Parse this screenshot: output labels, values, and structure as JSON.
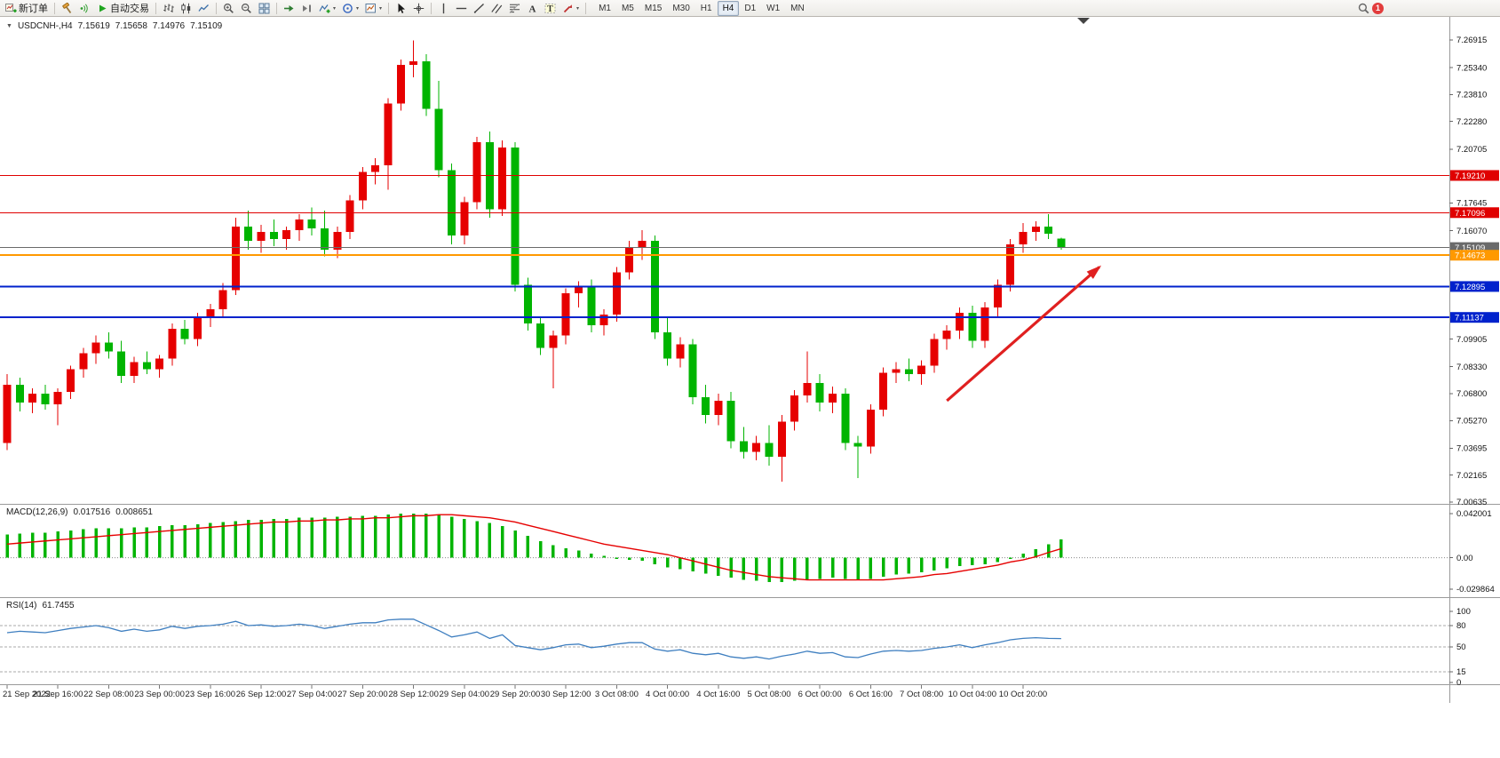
{
  "toolbar": {
    "groups": [
      [
        {
          "name": "new-order",
          "label": "新订单"
        }
      ],
      [
        {
          "name": "hammer"
        },
        {
          "name": "signal"
        },
        {
          "name": "autotrading",
          "label": "自动交易"
        }
      ],
      [
        {
          "name": "bar-chart"
        },
        {
          "name": "candlestick"
        },
        {
          "name": "line-chart"
        }
      ],
      [
        {
          "name": "zoom-in"
        },
        {
          "name": "zoom-out"
        },
        {
          "name": "tile-windows"
        }
      ],
      [
        {
          "name": "auto-scroll"
        },
        {
          "name": "chart-shift"
        },
        {
          "name": "indicators",
          "dropdown": true
        },
        {
          "name": "cycles",
          "dropdown": true
        },
        {
          "name": "templates",
          "dropdown": true
        }
      ],
      [
        {
          "name": "cursor"
        },
        {
          "name": "crosshair"
        }
      ],
      [
        {
          "name": "vertical-line"
        },
        {
          "name": "horizontal-line"
        },
        {
          "name": "trendline"
        },
        {
          "name": "channel"
        },
        {
          "name": "fibonacci"
        },
        {
          "name": "text"
        },
        {
          "name": "text-label"
        },
        {
          "name": "arrows",
          "dropdown": true
        }
      ]
    ],
    "timeframes": [
      "M1",
      "M5",
      "M15",
      "M30",
      "H1",
      "H4",
      "D1",
      "W1",
      "MN"
    ],
    "selected_timeframe": "H4",
    "notification_count": "1"
  },
  "quote": {
    "symbol_period": "USDCNH-,H4",
    "open": "7.15619",
    "high": "7.15658",
    "low": "7.14976",
    "close": "7.15109"
  },
  "chart_data": {
    "type": "candlestick",
    "symbol": "USDCNH-",
    "period": "H4",
    "colors": {
      "up": "#e60000",
      "down": "#00b400",
      "macd_hist": "#00b400",
      "macd_signal": "#e60000",
      "rsi": "#3f7fc0",
      "arrow": "#e02020"
    },
    "candles": [
      [
        7.04,
        7.079,
        7.036,
        7.073
      ],
      [
        7.073,
        7.077,
        7.058,
        7.063
      ],
      [
        7.063,
        7.071,
        7.057,
        7.068
      ],
      [
        7.068,
        7.073,
        7.059,
        7.062
      ],
      [
        7.062,
        7.071,
        7.05,
        7.069
      ],
      [
        7.069,
        7.084,
        7.065,
        7.082
      ],
      [
        7.082,
        7.094,
        7.077,
        7.091
      ],
      [
        7.091,
        7.101,
        7.085,
        7.097
      ],
      [
        7.097,
        7.103,
        7.088,
        7.092
      ],
      [
        7.092,
        7.098,
        7.074,
        7.078
      ],
      [
        7.078,
        7.089,
        7.074,
        7.086
      ],
      [
        7.086,
        7.092,
        7.079,
        7.082
      ],
      [
        7.082,
        7.09,
        7.077,
        7.088
      ],
      [
        7.088,
        7.108,
        7.084,
        7.105
      ],
      [
        7.105,
        7.11,
        7.096,
        7.099
      ],
      [
        7.099,
        7.114,
        7.095,
        7.112
      ],
      [
        7.112,
        7.119,
        7.106,
        7.116
      ],
      [
        7.116,
        7.131,
        7.112,
        7.127
      ],
      [
        7.127,
        7.168,
        7.124,
        7.163
      ],
      [
        7.163,
        7.172,
        7.15,
        7.155
      ],
      [
        7.155,
        7.164,
        7.148,
        7.16
      ],
      [
        7.16,
        7.167,
        7.152,
        7.156
      ],
      [
        7.156,
        7.163,
        7.15,
        7.161
      ],
      [
        7.161,
        7.17,
        7.155,
        7.167
      ],
      [
        7.167,
        7.174,
        7.158,
        7.162
      ],
      [
        7.162,
        7.172,
        7.146,
        7.15
      ],
      [
        7.15,
        7.163,
        7.145,
        7.16
      ],
      [
        7.16,
        7.181,
        7.156,
        7.178
      ],
      [
        7.178,
        7.197,
        7.173,
        7.194
      ],
      [
        7.194,
        7.202,
        7.187,
        7.198
      ],
      [
        7.198,
        7.236,
        7.184,
        7.233
      ],
      [
        7.233,
        7.258,
        7.229,
        7.255
      ],
      [
        7.255,
        7.269,
        7.248,
        7.257
      ],
      [
        7.257,
        7.261,
        7.226,
        7.23
      ],
      [
        7.23,
        7.246,
        7.191,
        7.195
      ],
      [
        7.195,
        7.199,
        7.153,
        7.158
      ],
      [
        7.158,
        7.18,
        7.153,
        7.177
      ],
      [
        7.177,
        7.214,
        7.173,
        7.211
      ],
      [
        7.211,
        7.217,
        7.168,
        7.173
      ],
      [
        7.173,
        7.212,
        7.169,
        7.208
      ],
      [
        7.208,
        7.211,
        7.126,
        7.13
      ],
      [
        7.13,
        7.134,
        7.104,
        7.108
      ],
      [
        7.108,
        7.112,
        7.09,
        7.094
      ],
      [
        7.094,
        7.104,
        7.071,
        7.101
      ],
      [
        7.101,
        7.128,
        7.096,
        7.125
      ],
      [
        7.125,
        7.132,
        7.117,
        7.129
      ],
      [
        7.129,
        7.133,
        7.103,
        7.107
      ],
      [
        7.107,
        7.116,
        7.101,
        7.113
      ],
      [
        7.113,
        7.14,
        7.109,
        7.137
      ],
      [
        7.137,
        7.155,
        7.133,
        7.151
      ],
      [
        7.151,
        7.161,
        7.144,
        7.155
      ],
      [
        7.155,
        7.158,
        7.099,
        7.103
      ],
      [
        7.103,
        7.111,
        7.084,
        7.088
      ],
      [
        7.088,
        7.1,
        7.083,
        7.096
      ],
      [
        7.096,
        7.099,
        7.062,
        7.066
      ],
      [
        7.066,
        7.073,
        7.051,
        7.056
      ],
      [
        7.056,
        7.068,
        7.05,
        7.064
      ],
      [
        7.064,
        7.069,
        7.037,
        7.041
      ],
      [
        7.041,
        7.049,
        7.031,
        7.035
      ],
      [
        7.035,
        7.044,
        7.03,
        7.04
      ],
      [
        7.04,
        7.05,
        7.027,
        7.032
      ],
      [
        7.032,
        7.056,
        7.018,
        7.052
      ],
      [
        7.052,
        7.07,
        7.047,
        7.067
      ],
      [
        7.067,
        7.092,
        7.063,
        7.074
      ],
      [
        7.074,
        7.079,
        7.058,
        7.063
      ],
      [
        7.063,
        7.072,
        7.057,
        7.068
      ],
      [
        7.068,
        7.071,
        7.036,
        7.04
      ],
      [
        7.04,
        7.044,
        7.02,
        7.038
      ],
      [
        7.038,
        7.062,
        7.034,
        7.059
      ],
      [
        7.059,
        7.083,
        7.055,
        7.08
      ],
      [
        7.08,
        7.086,
        7.074,
        7.082
      ],
      [
        7.082,
        7.088,
        7.075,
        7.079
      ],
      [
        7.079,
        7.087,
        7.073,
        7.084
      ],
      [
        7.084,
        7.102,
        7.08,
        7.099
      ],
      [
        7.099,
        7.107,
        7.093,
        7.104
      ],
      [
        7.104,
        7.117,
        7.099,
        7.114
      ],
      [
        7.114,
        7.118,
        7.094,
        7.098
      ],
      [
        7.098,
        7.12,
        7.094,
        7.117
      ],
      [
        7.117,
        7.133,
        7.112,
        7.13
      ],
      [
        7.13,
        7.156,
        7.126,
        7.153
      ],
      [
        7.153,
        7.165,
        7.148,
        7.16
      ],
      [
        7.16,
        7.166,
        7.155,
        7.163
      ],
      [
        7.163,
        7.17,
        7.156,
        7.159
      ],
      [
        7.15619,
        7.15658,
        7.14976,
        7.15109
      ]
    ],
    "levels": [
      {
        "price": 7.1921,
        "label": "7.19210",
        "color": "#e00000",
        "weight": 1
      },
      {
        "price": 7.17096,
        "label": "7.17096",
        "color": "#e00000",
        "weight": 1
      },
      {
        "price": 7.15109,
        "label": "7.15109",
        "color": "#6a6a6a",
        "weight": 1,
        "is_current_price": true
      },
      {
        "price": 7.14673,
        "label": "7.14673",
        "color": "#ff9900",
        "weight": 2
      },
      {
        "price": 7.12895,
        "label": "7.12895",
        "color": "#0022cc",
        "weight": 2
      },
      {
        "price": 7.11137,
        "label": "7.11137",
        "color": "#0022cc",
        "weight": 2
      }
    ],
    "y_axis": {
      "ticks": [
        "7.26915",
        "7.25340",
        "7.23810",
        "7.22280",
        "7.20705",
        "7.17645",
        "7.16070",
        "7.09905",
        "7.08330",
        "7.06800",
        "7.05270",
        "7.03695",
        "7.02165",
        "7.00635"
      ]
    },
    "x_labels": [
      "21 Sep 2022",
      "21 Sep 16:00",
      "22 Sep 08:00",
      "23 Sep 00:00",
      "23 Sep 16:00",
      "26 Sep 12:00",
      "27 Sep 04:00",
      "27 Sep 20:00",
      "28 Sep 12:00",
      "29 Sep 04:00",
      "29 Sep 20:00",
      "30 Sep 12:00",
      "3 Oct 08:00",
      "4 Oct 00:00",
      "4 Oct 16:00",
      "5 Oct 08:00",
      "6 Oct 00:00",
      "6 Oct 16:00",
      "7 Oct 08:00",
      "10 Oct 04:00",
      "10 Oct 20:00"
    ],
    "bars_per_label": 4,
    "indicators": [
      {
        "name": "MACD",
        "title": "MACD(12,26,9)",
        "value1": "0.017516",
        "value2": "0.008651",
        "axis": [
          "0.042001",
          "0.00",
          "-0.029864"
        ],
        "histogram": [
          0.022,
          0.023,
          0.024,
          0.024,
          0.025,
          0.026,
          0.027,
          0.028,
          0.028,
          0.028,
          0.029,
          0.029,
          0.03,
          0.031,
          0.031,
          0.032,
          0.033,
          0.034,
          0.035,
          0.036,
          0.036,
          0.037,
          0.037,
          0.038,
          0.038,
          0.038,
          0.039,
          0.039,
          0.04,
          0.04,
          0.041,
          0.042,
          0.042,
          0.042,
          0.041,
          0.039,
          0.037,
          0.035,
          0.033,
          0.03,
          0.026,
          0.021,
          0.016,
          0.012,
          0.009,
          0.007,
          0.004,
          0.002,
          -0.001,
          -0.002,
          -0.003,
          -0.006,
          -0.009,
          -0.011,
          -0.013,
          -0.015,
          -0.017,
          -0.019,
          -0.021,
          -0.022,
          -0.023,
          -0.023,
          -0.022,
          -0.021,
          -0.02,
          -0.019,
          -0.02,
          -0.021,
          -0.02,
          -0.018,
          -0.016,
          -0.015,
          -0.014,
          -0.012,
          -0.01,
          -0.008,
          -0.007,
          -0.006,
          -0.004,
          -0.001,
          0.004,
          0.008,
          0.013,
          0.017516
        ],
        "signal": [
          0.013,
          0.014,
          0.015,
          0.016,
          0.017,
          0.018,
          0.019,
          0.02,
          0.021,
          0.022,
          0.023,
          0.024,
          0.025,
          0.026,
          0.027,
          0.028,
          0.029,
          0.03,
          0.031,
          0.032,
          0.033,
          0.034,
          0.034,
          0.035,
          0.035,
          0.036,
          0.036,
          0.037,
          0.037,
          0.038,
          0.038,
          0.039,
          0.04,
          0.04,
          0.041,
          0.041,
          0.04,
          0.039,
          0.038,
          0.036,
          0.034,
          0.031,
          0.028,
          0.025,
          0.022,
          0.019,
          0.016,
          0.013,
          0.011,
          0.009,
          0.007,
          0.005,
          0.003,
          0.0,
          -0.003,
          -0.006,
          -0.009,
          -0.012,
          -0.014,
          -0.016,
          -0.018,
          -0.019,
          -0.02,
          -0.021,
          -0.021,
          -0.021,
          -0.021,
          -0.021,
          -0.021,
          -0.021,
          -0.02,
          -0.019,
          -0.018,
          -0.016,
          -0.015,
          -0.013,
          -0.011,
          -0.009,
          -0.007,
          -0.004,
          -0.002,
          0.001,
          0.005,
          0.008651
        ]
      },
      {
        "name": "RSI",
        "title": "RSI(14)",
        "value": "61.7455",
        "levels": [
          80,
          50,
          15
        ],
        "axis": [
          "100",
          "80",
          "50",
          "15",
          "0"
        ],
        "values": [
          70,
          72,
          71,
          70,
          73,
          76,
          78,
          80,
          77,
          72,
          75,
          72,
          74,
          79,
          76,
          79,
          80,
          82,
          86,
          80,
          81,
          79,
          80,
          82,
          80,
          76,
          79,
          82,
          84,
          84,
          88,
          89,
          89,
          81,
          73,
          64,
          67,
          71,
          62,
          67,
          52,
          49,
          46,
          49,
          53,
          54,
          49,
          51,
          54,
          56,
          56,
          47,
          44,
          46,
          41,
          39,
          41,
          36,
          34,
          36,
          33,
          37,
          40,
          44,
          41,
          42,
          36,
          35,
          40,
          44,
          45,
          44,
          45,
          48,
          50,
          53,
          49,
          53,
          56,
          60,
          62,
          63,
          62,
          61.7455
        ]
      }
    ],
    "annotations": [
      {
        "type": "arrow",
        "from_bar": 74,
        "from_price": 7.064,
        "to_bar": 86,
        "to_price": 7.14,
        "color": "#e02020",
        "width": 3.2
      }
    ]
  }
}
